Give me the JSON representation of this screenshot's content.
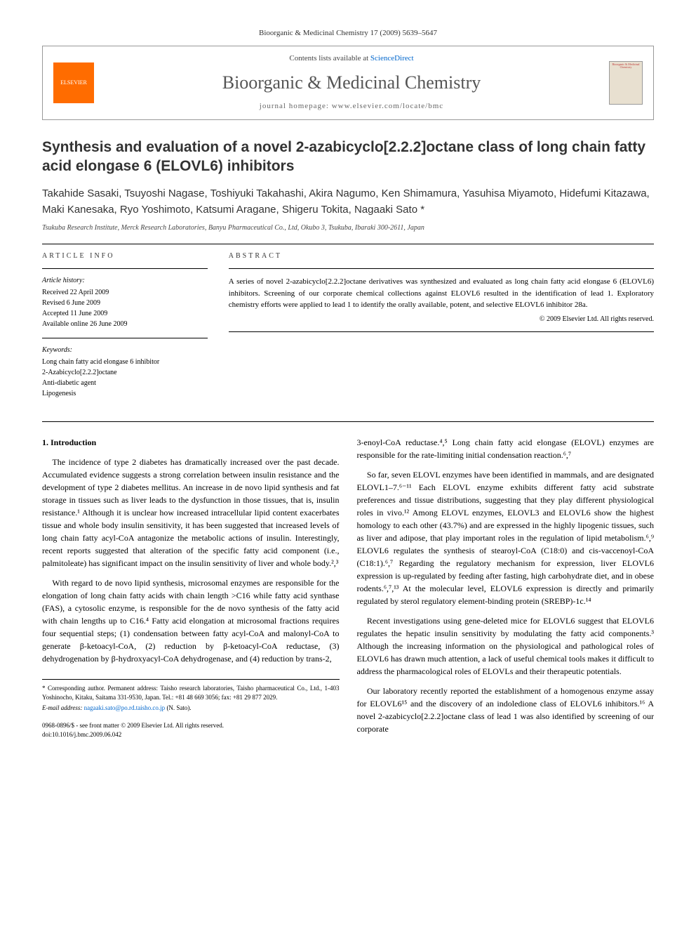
{
  "header": {
    "citation": "Bioorganic & Medicinal Chemistry 17 (2009) 5639–5647",
    "contents_prefix": "Contents lists available at ",
    "contents_link": "ScienceDirect",
    "journal_name": "Bioorganic & Medicinal Chemistry",
    "homepage": "journal homepage: www.elsevier.com/locate/bmc",
    "publisher_logo": "ELSEVIER",
    "cover_text": "Bioorganic & Medicinal Chemistry"
  },
  "article": {
    "title": "Synthesis and evaluation of a novel 2-azabicyclo[2.2.2]octane class of long chain fatty acid elongase 6 (ELOVL6) inhibitors",
    "authors": "Takahide Sasaki, Tsuyoshi Nagase, Toshiyuki Takahashi, Akira Nagumo, Ken Shimamura, Yasuhisa Miyamoto, Hidefumi Kitazawa, Maki Kanesaka, Ryo Yoshimoto, Katsumi Aragane, Shigeru Tokita, Nagaaki Sato *",
    "affiliation": "Tsukuba Research Institute, Merck Research Laboratories, Banyu Pharmaceutical Co., Ltd, Okubo 3, Tsukuba, Ibaraki 300-2611, Japan"
  },
  "meta": {
    "info_label": "ARTICLE INFO",
    "abstract_label": "ABSTRACT",
    "history_heading": "Article history:",
    "history": {
      "received": "Received 22 April 2009",
      "revised": "Revised 6 June 2009",
      "accepted": "Accepted 11 June 2009",
      "online": "Available online 26 June 2009"
    },
    "keywords_heading": "Keywords:",
    "keywords": {
      "k1": "Long chain fatty acid elongase 6 inhibitor",
      "k2": "2-Azabicyclo[2.2.2]octane",
      "k3": "Anti-diabetic agent",
      "k4": "Lipogenesis"
    }
  },
  "abstract": {
    "text": "A series of novel 2-azabicyclo[2.2.2]octane derivatives was synthesized and evaluated as long chain fatty acid elongase 6 (ELOVL6) inhibitors. Screening of our corporate chemical collections against ELOVL6 resulted in the identification of lead 1. Exploratory chemistry efforts were applied to lead 1 to identify the orally available, potent, and selective ELOVL6 inhibitor 28a.",
    "copyright": "© 2009 Elsevier Ltd. All rights reserved."
  },
  "body": {
    "intro_heading": "1. Introduction",
    "p1": "The incidence of type 2 diabetes has dramatically increased over the past decade. Accumulated evidence suggests a strong correlation between insulin resistance and the development of type 2 diabetes mellitus. An increase in de novo lipid synthesis and fat storage in tissues such as liver leads to the dysfunction in those tissues, that is, insulin resistance.¹ Although it is unclear how increased intracellular lipid content exacerbates tissue and whole body insulin sensitivity, it has been suggested that increased levels of long chain fatty acyl-CoA antagonize the metabolic actions of insulin. Interestingly, recent reports suggested that alteration of the specific fatty acid component (i.e., palmitoleate) has significant impact on the insulin sensitivity of liver and whole body.²,³",
    "p2": "With regard to de novo lipid synthesis, microsomal enzymes are responsible for the elongation of long chain fatty acids with chain length >C16 while fatty acid synthase (FAS), a cytosolic enzyme, is responsible for the de novo synthesis of the fatty acid with chain lengths up to C16.⁴ Fatty acid elongation at microsomal fractions requires four sequential steps; (1) condensation between fatty acyl-CoA and malonyl-CoA to generate β-ketoacyl-CoA, (2) reduction by β-ketoacyl-CoA reductase, (3) dehydrogenation by β-hydroxyacyl-CoA dehydrogenase, and (4) reduction by trans-2,",
    "p3": "3-enoyl-CoA reductase.⁴,⁵ Long chain fatty acid elongase (ELOVL) enzymes are responsible for the rate-limiting initial condensation reaction.⁶,⁷",
    "p4": "So far, seven ELOVL enzymes have been identified in mammals, and are designated ELOVL1–7.⁶⁻¹¹ Each ELOVL enzyme exhibits different fatty acid substrate preferences and tissue distributions, suggesting that they play different physiological roles in vivo.¹² Among ELOVL enzymes, ELOVL3 and ELOVL6 show the highest homology to each other (43.7%) and are expressed in the highly lipogenic tissues, such as liver and adipose, that play important roles in the regulation of lipid metabolism.⁶,⁹ ELOVL6 regulates the synthesis of stearoyl-CoA (C18:0) and cis-vaccenoyl-CoA (C18:1).⁶,⁷ Regarding the regulatory mechanism for expression, liver ELOVL6 expression is up-regulated by feeding after fasting, high carbohydrate diet, and in obese rodents.⁶,⁷,¹³ At the molecular level, ELOVL6 expression is directly and primarily regulated by sterol regulatory element-binding protein (SREBP)-1c.¹⁴",
    "p5": "Recent investigations using gene-deleted mice for ELOVL6 suggest that ELOVL6 regulates the hepatic insulin sensitivity by modulating the fatty acid components.³ Although the increasing information on the physiological and pathological roles of ELOVL6 has drawn much attention, a lack of useful chemical tools makes it difficult to address the pharmacological roles of ELOVLs and their therapeutic potentials.",
    "p6": "Our laboratory recently reported the establishment of a homogenous enzyme assay for ELOVL6¹⁵ and the discovery of an indoledione class of ELOVL6 inhibitors.¹⁶ A novel 2-azabicyclo[2.2.2]octane class of lead 1 was also identified by screening of our corporate"
  },
  "footer": {
    "corr": "* Corresponding author. Permanent address: Taisho research laboratories, Taisho pharmaceutical Co., Ltd., 1-403 Yoshinocho, Kitaku, Saitama 331-9530, Japan. Tel.: +81 48 669 3056; fax: +81 29 877 2029.",
    "email_label": "E-mail address: ",
    "email": "nagaaki.sato@po.rd.taisho.co.jp",
    "email_suffix": " (N. Sato).",
    "issn": "0968-0896/$ - see front matter © 2009 Elsevier Ltd. All rights reserved.",
    "doi": "doi:10.1016/j.bmc.2009.06.042"
  },
  "colors": {
    "link": "#0066cc",
    "logo_bg": "#ff6c00",
    "text": "#000000",
    "muted": "#555555"
  }
}
